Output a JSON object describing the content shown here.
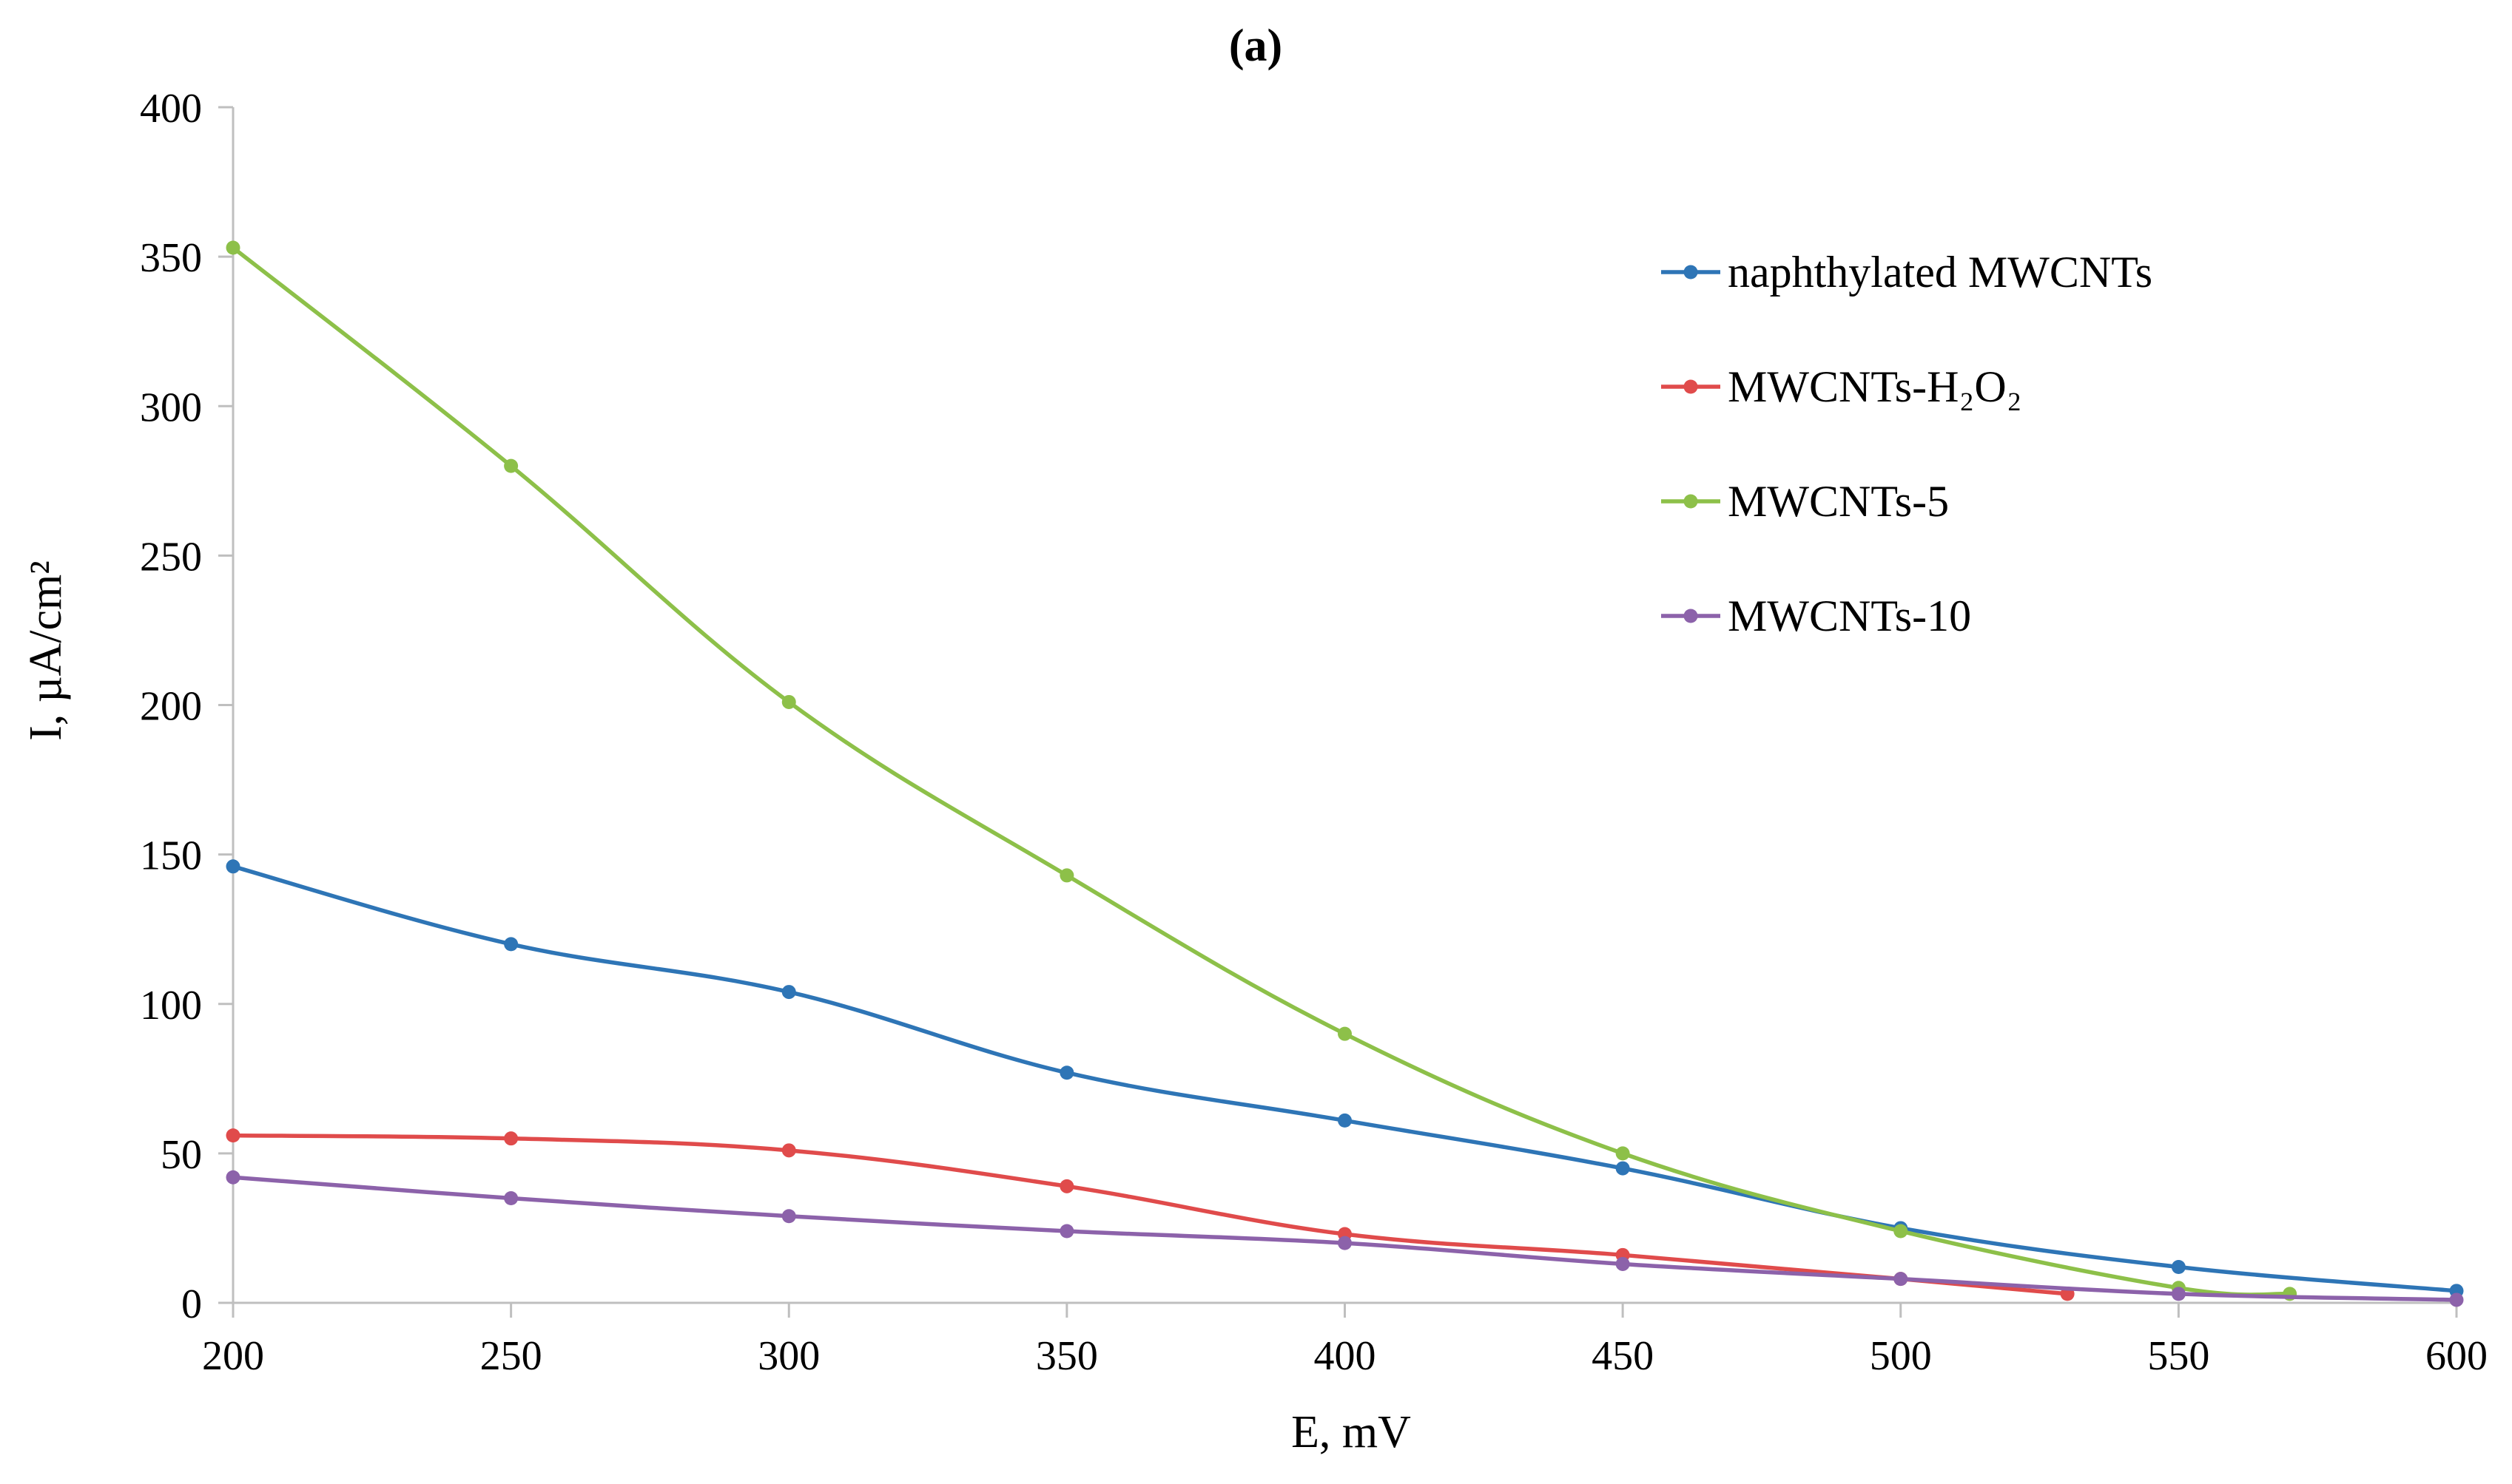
{
  "chart_data": {
    "type": "line",
    "title": "(a)",
    "xlabel": "E, mV",
    "ylabel": "I, µA/cm²",
    "xlim": [
      200,
      600
    ],
    "ylim": [
      0,
      400
    ],
    "x_ticks": [
      200,
      250,
      300,
      350,
      400,
      450,
      500,
      550,
      600
    ],
    "y_ticks": [
      0,
      50,
      100,
      150,
      200,
      250,
      300,
      350,
      400
    ],
    "grid": false,
    "legend_position": "right",
    "series": [
      {
        "name": "naphthylated MWCNTs",
        "color": "#2E75B6",
        "points": [
          [
            200,
            146
          ],
          [
            250,
            120
          ],
          [
            300,
            104
          ],
          [
            350,
            77
          ],
          [
            400,
            61
          ],
          [
            450,
            45
          ],
          [
            500,
            25
          ],
          [
            550,
            12
          ],
          [
            600,
            4
          ]
        ]
      },
      {
        "name": "MWCNTs-H₂O₂",
        "color": "#E04B4B",
        "points": [
          [
            200,
            56
          ],
          [
            250,
            55
          ],
          [
            300,
            51
          ],
          [
            350,
            39
          ],
          [
            400,
            23
          ],
          [
            450,
            16
          ],
          [
            500,
            8
          ],
          [
            530,
            3
          ]
        ]
      },
      {
        "name": "MWCNTs-5",
        "color": "#8DC049",
        "points": [
          [
            200,
            353
          ],
          [
            250,
            280
          ],
          [
            300,
            201
          ],
          [
            350,
            143
          ],
          [
            400,
            90
          ],
          [
            450,
            50
          ],
          [
            500,
            24
          ],
          [
            550,
            5
          ],
          [
            570,
            3
          ]
        ]
      },
      {
        "name": "MWCNTs-10",
        "color": "#8C62AA",
        "points": [
          [
            200,
            42
          ],
          [
            250,
            35
          ],
          [
            300,
            29
          ],
          [
            350,
            24
          ],
          [
            400,
            20
          ],
          [
            450,
            13
          ],
          [
            500,
            8
          ],
          [
            550,
            3
          ],
          [
            600,
            1
          ]
        ]
      }
    ]
  }
}
